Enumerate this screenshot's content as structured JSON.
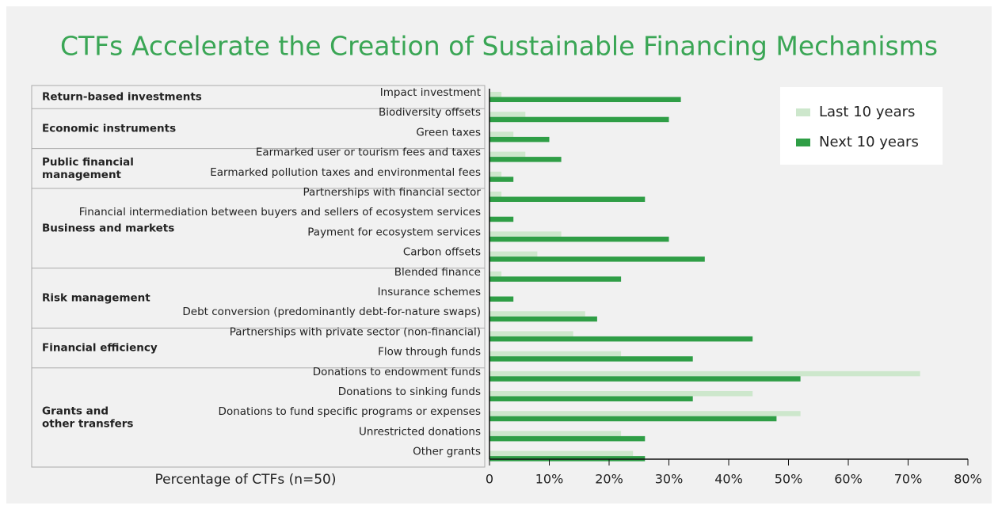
{
  "chart_data": {
    "type": "bar",
    "orientation": "horizontal",
    "title": "CTFs Accelerate the Creation of Sustainable Financing Mechanisms",
    "xlabel": "Percentage of CTFs (n=50)",
    "categories": [
      "Impact investment",
      "Biodiversity offsets",
      "Green taxes",
      "Earmarked user or tourism fees and taxes",
      "Earmarked pollution taxes and environmental fees",
      "Partnerships with financial sector",
      "Financial intermediation between buyers and sellers of ecosystem services",
      "Payment for ecosystem services",
      "Carbon offsets",
      "Blended finance",
      "Insurance schemes",
      "Debt conversion (predominantly debt-for-nature swaps)",
      "Partnerships with private sector (non-financial)",
      "Flow through funds",
      "Donations to endowment funds",
      "Donations to sinking funds",
      "Donations to fund specific programs or expenses",
      "Unrestricted donations",
      "Other grants"
    ],
    "groups": [
      {
        "label": [
          "Return-based investments"
        ],
        "start": 0,
        "end": 0
      },
      {
        "label": [
          "Economic instruments"
        ],
        "start": 1,
        "end": 2
      },
      {
        "label": [
          "Public financial",
          "management"
        ],
        "start": 3,
        "end": 4
      },
      {
        "label": [
          "Business and markets"
        ],
        "start": 5,
        "end": 8
      },
      {
        "label": [
          "Risk management"
        ],
        "start": 9,
        "end": 11
      },
      {
        "label": [
          "Financial efficiency"
        ],
        "start": 12,
        "end": 13
      },
      {
        "label": [
          "Grants and",
          "other transfers"
        ],
        "start": 14,
        "end": 18
      }
    ],
    "series": [
      {
        "name": "Last 10 years",
        "color": "#cde7cc",
        "values": [
          2,
          6,
          4,
          6,
          2,
          2,
          0,
          12,
          8,
          2,
          0,
          16,
          14,
          22,
          72,
          44,
          52,
          22,
          24
        ]
      },
      {
        "name": "Next 10 years",
        "color": "#2f9e46",
        "values": [
          32,
          30,
          10,
          12,
          4,
          26,
          4,
          30,
          36,
          22,
          4,
          18,
          44,
          34,
          52,
          34,
          48,
          26,
          26
        ]
      }
    ],
    "xlim": [
      0,
      80
    ],
    "xticks": [
      0,
      {
        "value": 10,
        "label": "10%"
      },
      {
        "value": 20,
        "label": "20%"
      },
      {
        "value": 30,
        "label": "30%"
      },
      {
        "value": 40,
        "label": "40%"
      },
      {
        "value": 50,
        "label": "50%"
      },
      {
        "value": 60,
        "label": "60%"
      },
      {
        "value": 70,
        "label": "70%"
      },
      {
        "value": 80,
        "label": "80%"
      }
    ],
    "legend": "upper right",
    "grid": false
  }
}
